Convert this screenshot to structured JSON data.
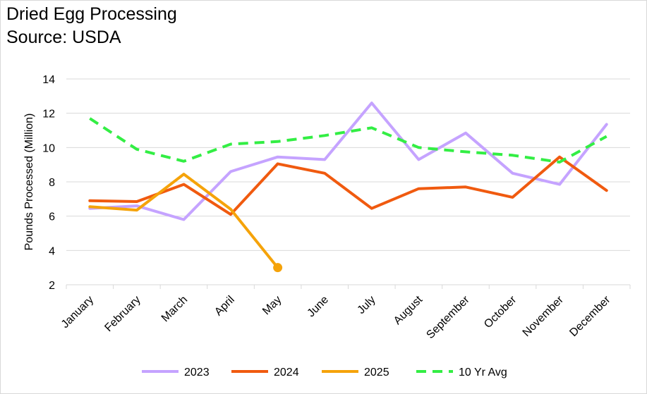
{
  "title": "Dried Egg Processing",
  "subtitle": "Source: USDA",
  "chart_data": {
    "type": "line",
    "title": "Dried Egg Processing",
    "subtitle": "Source: USDA",
    "xlabel": "",
    "ylabel": "Pounds Processed (Million)",
    "ylim": [
      2,
      14
    ],
    "yticks": [
      2,
      4,
      6,
      8,
      10,
      12,
      14
    ],
    "grid": true,
    "legend_position": "bottom",
    "categories": [
      "January",
      "February",
      "March",
      "April",
      "May",
      "June",
      "July",
      "August",
      "September",
      "October",
      "November",
      "December"
    ],
    "series": [
      {
        "name": "2023",
        "color": "#c5a3ff",
        "dashed": false,
        "values": [
          6.45,
          6.6,
          5.8,
          8.6,
          9.45,
          9.3,
          12.6,
          9.3,
          10.85,
          8.5,
          7.85,
          11.35
        ]
      },
      {
        "name": "2024",
        "color": "#f05a0f",
        "dashed": false,
        "values": [
          6.9,
          6.85,
          7.85,
          6.1,
          9.05,
          8.5,
          6.45,
          7.6,
          7.7,
          7.1,
          9.45,
          7.5
        ]
      },
      {
        "name": "2025",
        "color": "#f5a30a",
        "dashed": false,
        "end_marker": true,
        "values": [
          6.55,
          6.35,
          8.45,
          6.4,
          3.0,
          null,
          null,
          null,
          null,
          null,
          null,
          null
        ]
      },
      {
        "name": "10 Yr Avg",
        "color": "#33ee44",
        "dashed": true,
        "values": [
          11.7,
          9.9,
          9.2,
          10.2,
          10.35,
          10.7,
          11.15,
          10.0,
          9.75,
          9.55,
          9.15,
          10.65
        ]
      }
    ]
  }
}
